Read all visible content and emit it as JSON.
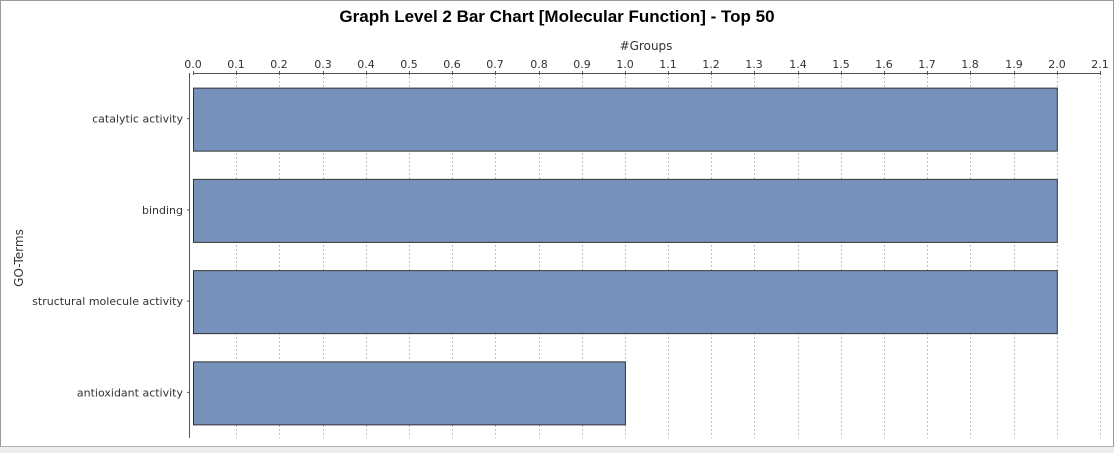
{
  "chart_data": {
    "type": "bar",
    "orientation": "horizontal",
    "title": "Graph Level 2 Bar Chart [Molecular Function] - Top 50",
    "xlabel": "#Groups",
    "ylabel": "GO-Terms",
    "categories": [
      "catalytic activity",
      "binding",
      "structural molecule activity",
      "antioxidant activity"
    ],
    "values": [
      2,
      2,
      2,
      1
    ],
    "xlim": [
      0,
      2.1
    ],
    "xticks": [
      "0.0",
      "0.1",
      "0.2",
      "0.3",
      "0.4",
      "0.5",
      "0.6",
      "0.7",
      "0.8",
      "0.9",
      "1.0",
      "1.1",
      "1.2",
      "1.3",
      "1.4",
      "1.5",
      "1.6",
      "1.7",
      "1.8",
      "1.9",
      "2.0",
      "2.1"
    ],
    "x_axis_position": "top",
    "grid": true,
    "legend": "none",
    "bar_color": "#7692bb",
    "bar_edge_color": "#333333",
    "grid_color": "#c0c0c0"
  }
}
